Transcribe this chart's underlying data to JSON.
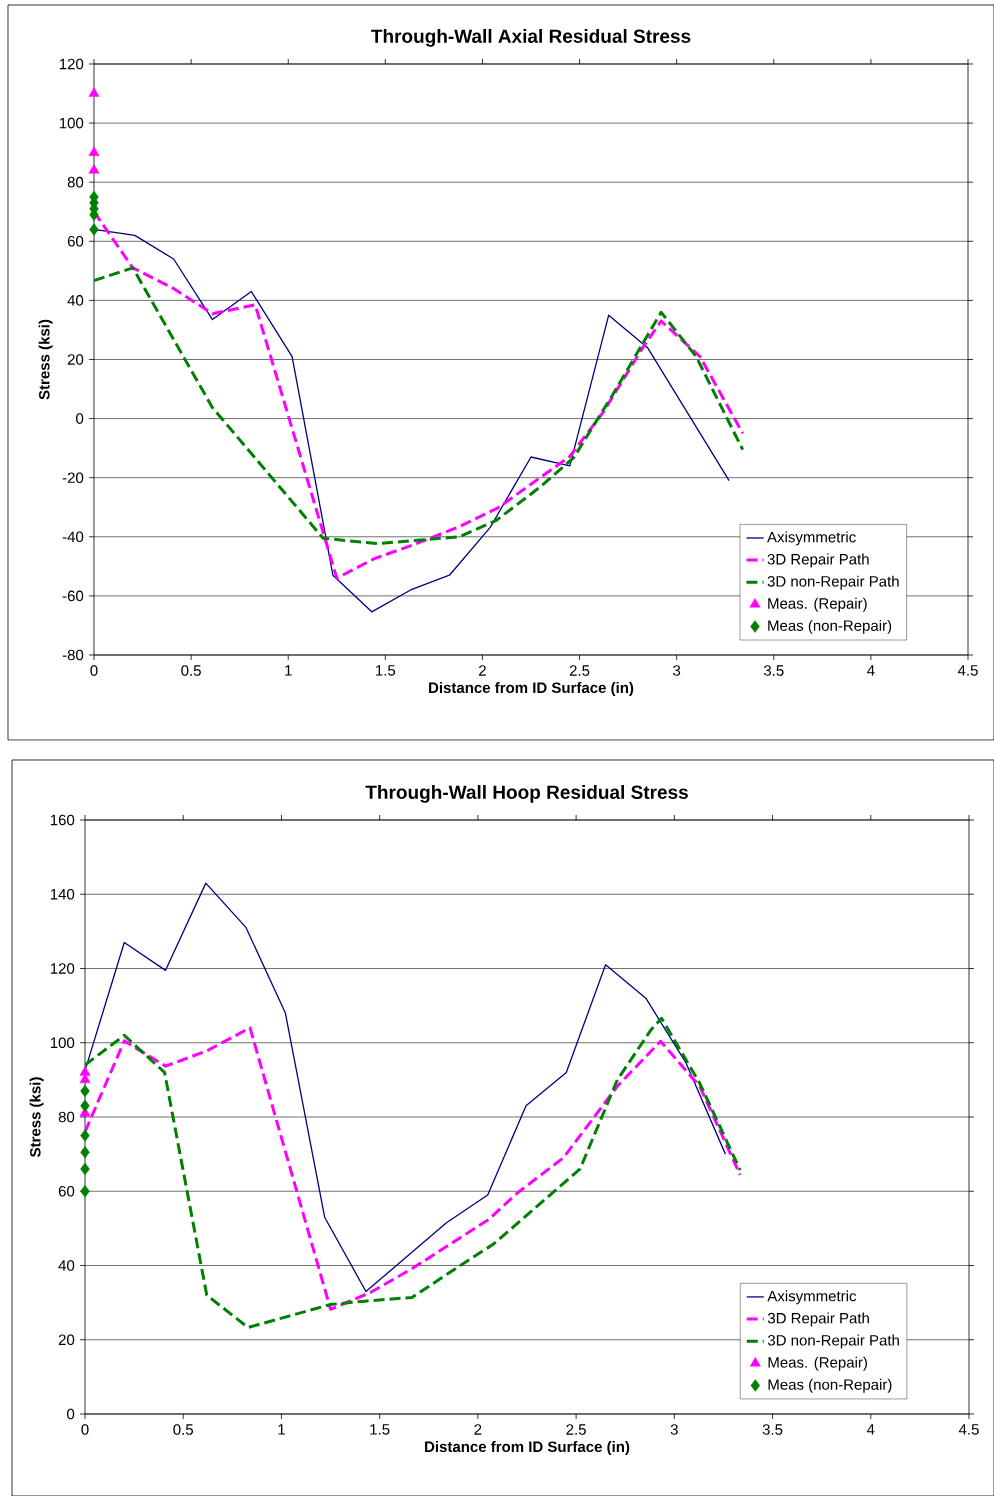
{
  "chart_data": [
    {
      "type": "line",
      "title": "Through-Wall Axial Residual Stress",
      "xlabel": "Distance from ID Surface (in)",
      "ylabel": "Stress (ksi)",
      "xlim": [
        0,
        4.5
      ],
      "xticks": [
        0,
        0.5,
        1,
        1.5,
        2,
        2.5,
        3,
        3.5,
        4,
        4.5
      ],
      "ylim": [
        -80,
        120
      ],
      "yticks": [
        -80,
        -60,
        -40,
        -20,
        0,
        20,
        40,
        60,
        80,
        100,
        120
      ],
      "grid": "y",
      "legend": "bottom right",
      "series": [
        {
          "name": "Axisymmetric",
          "color": "#000080",
          "line_style": "solid",
          "marker": "none",
          "x": [
            0,
            0.21,
            0.41,
            0.61,
            0.81,
            1.02,
            1.23,
            1.43,
            1.63,
            1.83,
            2.04,
            2.25,
            2.45,
            2.65,
            2.85,
            3.27
          ],
          "values": [
            64,
            62,
            54,
            33.5,
            43,
            21,
            -53,
            -65.4,
            -58,
            -53,
            -36.8,
            -13,
            -16,
            35,
            24,
            -21
          ]
        },
        {
          "name": "3D Repair Path",
          "color": "#ff00ff",
          "line_style": "dashed",
          "marker": "none",
          "x": [
            0,
            0.2,
            0.41,
            0.61,
            0.83,
            1.25,
            1.44,
            1.66,
            1.88,
            2.08,
            2.45,
            2.62,
            2.83,
            2.92,
            3.12,
            3.34
          ],
          "values": [
            70,
            51,
            44,
            35.5,
            38.5,
            -54,
            -47.5,
            -42.3,
            -36.6,
            -30.2,
            -12.8,
            2,
            24.5,
            33,
            21,
            -5
          ]
        },
        {
          "name": "3D non-Repair Path",
          "color": "#008000",
          "line_style": "dashed",
          "marker": "none",
          "x": [
            0,
            0.2,
            0.61,
            1.18,
            1.46,
            1.88,
            2.07,
            2.3,
            2.47,
            2.67,
            2.92,
            3.1,
            3.34
          ],
          "values": [
            46.7,
            51,
            3.7,
            -40.5,
            -42.3,
            -40,
            -34.5,
            -23,
            -13.2,
            8,
            36,
            21,
            -10.5
          ]
        },
        {
          "name": "Meas. (Repair)",
          "type": "scatter",
          "color": "#ff00ff",
          "marker": "triangle",
          "x": [
            0,
            0,
            0
          ],
          "values": [
            110,
            90,
            84
          ]
        },
        {
          "name": "Meas (non-Repair)",
          "type": "scatter",
          "color": "#008000",
          "marker": "diamond",
          "x": [
            0,
            0,
            0,
            0,
            0
          ],
          "values": [
            75,
            73,
            71,
            69,
            64
          ]
        }
      ]
    },
    {
      "type": "line",
      "title": "Through-Wall Hoop Residual Stress",
      "xlabel": "Distance from ID Surface (in)",
      "ylabel": "Stress (ksi)",
      "xlim": [
        0,
        4.5
      ],
      "xticks": [
        0,
        0.5,
        1,
        1.5,
        2,
        2.5,
        3,
        3.5,
        4,
        4.5
      ],
      "ylim": [
        0,
        160
      ],
      "yticks": [
        0,
        20,
        40,
        60,
        80,
        100,
        120,
        140,
        160
      ],
      "grid": "y",
      "legend": "bottom right",
      "series": [
        {
          "name": "Axisymmetric",
          "color": "#000080",
          "line_style": "solid",
          "marker": "none",
          "x": [
            0,
            0.2,
            0.41,
            0.615,
            0.82,
            1.02,
            1.22,
            1.43,
            1.63,
            1.84,
            2.05,
            2.245,
            2.45,
            2.65,
            2.855,
            3.06,
            3.26
          ],
          "values": [
            92.5,
            127,
            119.5,
            143,
            131,
            108,
            53,
            33,
            42,
            51.5,
            59,
            83,
            92,
            121,
            112,
            94.5,
            70
          ]
        },
        {
          "name": "3D Repair Path",
          "color": "#ff00ff",
          "line_style": "dashed",
          "marker": "none",
          "x": [
            0,
            0.2,
            0.41,
            0.62,
            0.84,
            1.25,
            1.455,
            1.66,
            2.055,
            2.2,
            2.435,
            2.71,
            2.93,
            3.13,
            3.335
          ],
          "values": [
            76,
            100.5,
            93.7,
            97.8,
            104,
            28.2,
            32.8,
            39,
            52.4,
            59.5,
            69,
            88.3,
            100.4,
            88.2,
            64.4
          ]
        },
        {
          "name": "3D non-Repair Path",
          "color": "#008000",
          "line_style": "dashed",
          "marker": "none",
          "x": [
            0,
            0.2,
            0.405,
            0.62,
            0.83,
            1.25,
            1.425,
            1.665,
            1.87,
            2.08,
            2.52,
            2.71,
            2.88,
            2.935,
            3.13,
            3.335
          ],
          "values": [
            94,
            102,
            92,
            32,
            23.3,
            29.5,
            30.4,
            31.4,
            38.6,
            45.8,
            66,
            90,
            103.4,
            106.6,
            89,
            65.7
          ]
        },
        {
          "name": "Meas. (Repair)",
          "type": "scatter",
          "color": "#ff00ff",
          "marker": "triangle",
          "x": [
            0,
            0,
            0
          ],
          "values": [
            92,
            90,
            81
          ]
        },
        {
          "name": "Meas (non-Repair)",
          "type": "scatter",
          "color": "#008000",
          "marker": "diamond",
          "x": [
            0,
            0,
            0,
            0,
            0,
            0
          ],
          "values": [
            87,
            83,
            75,
            70.5,
            66,
            60
          ]
        }
      ]
    }
  ]
}
